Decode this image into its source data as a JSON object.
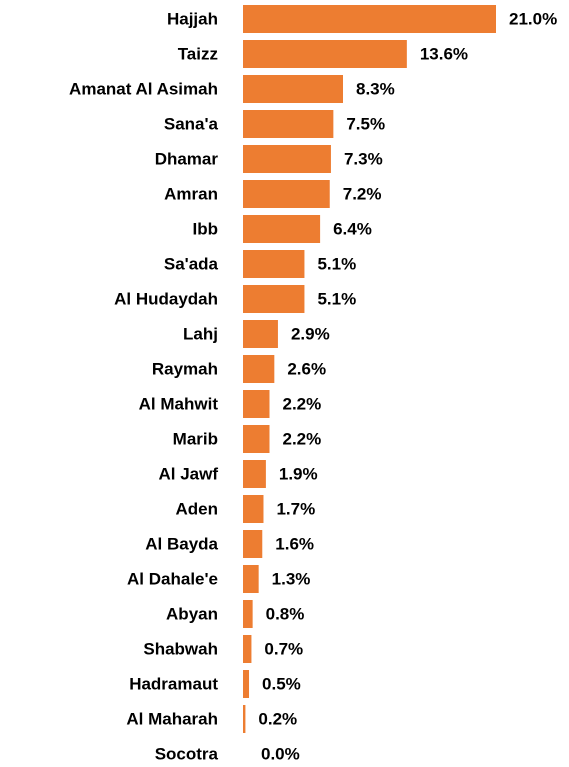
{
  "chart_data": {
    "type": "bar",
    "orientation": "horizontal",
    "color": "#ed7d31",
    "categories": [
      "Hajjah",
      "Taizz",
      "Amanat Al Asimah",
      "Sana'a",
      "Dhamar",
      "Amran",
      "Ibb",
      "Sa'ada",
      "Al Hudaydah",
      "Lahj",
      "Raymah",
      "Al Mahwit",
      "Marib",
      "Al Jawf",
      "Aden",
      "Al Bayda",
      "Al Dahale'e",
      "Abyan",
      "Shabwah",
      "Hadramaut",
      "Al Maharah",
      "Socotra"
    ],
    "values": [
      21.0,
      13.6,
      8.3,
      7.5,
      7.3,
      7.2,
      6.4,
      5.1,
      5.1,
      2.9,
      2.6,
      2.2,
      2.2,
      1.9,
      1.7,
      1.6,
      1.3,
      0.8,
      0.7,
      0.5,
      0.2,
      0.0
    ],
    "value_labels": [
      "21.0%",
      "13.6%",
      "8.3%",
      "7.5%",
      "7.3%",
      "7.2%",
      "6.4%",
      "5.1%",
      "5.1%",
      "2.9%",
      "2.6%",
      "2.2%",
      "2.2%",
      "1.9%",
      "1.7%",
      "1.6%",
      "1.3%",
      "0.8%",
      "0.7%",
      "0.5%",
      "0.2%",
      "0.0%"
    ]
  }
}
